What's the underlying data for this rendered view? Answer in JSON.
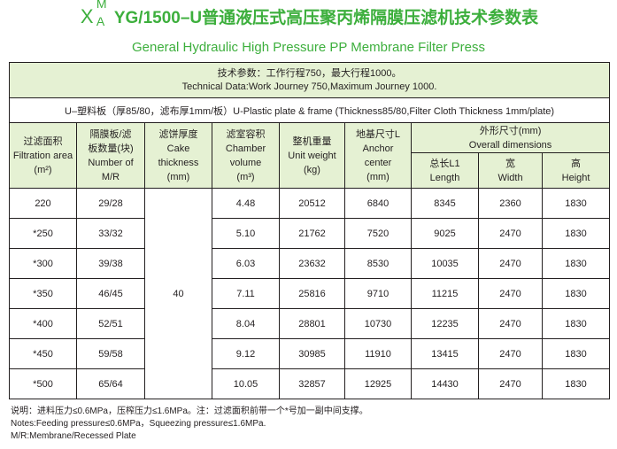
{
  "title": {
    "prefix_x": "X",
    "prefix_m": "M",
    "prefix_a": "A",
    "main": "YG/1500–U普通液压式高压聚丙烯隔膜压滤机技术参数表"
  },
  "subtitle": "General Hydraulic High Pressure PP Membrane Filter Press",
  "technical": {
    "zh": "技术参数：工作行程750，最大行程1000。",
    "en": "Technical Data:Work Journey 750,Maximum Journey 1000."
  },
  "plate_info": "U–塑料板（厚85/80，滤布厚1mm/板）U-Plastic plate & frame (Thickness85/80,Filter Cloth Thickness 1mm/plate)",
  "headers": {
    "filtration_area": {
      "zh": "过滤面积",
      "en": "Filtration area",
      "unit": "(m²)"
    },
    "plates": {
      "zh1": "隔膜板/滤",
      "zh2": "板数量(块)",
      "en1": "Number of",
      "en2": "M/R"
    },
    "cake": {
      "zh": "滤饼厚度",
      "en1": "Cake",
      "en2": "thickness",
      "unit": "(mm)"
    },
    "chamber": {
      "zh": "滤室容积",
      "en1": "Chamber",
      "en2": "volume",
      "unit": "(m³)"
    },
    "weight": {
      "zh": "整机重量",
      "en": "Unit weight",
      "unit": "(kg)"
    },
    "anchor": {
      "zh": "地基尺寸L",
      "en1": "Anchor",
      "en2": "center",
      "unit": "(mm)"
    },
    "overall": {
      "zh": "外形尺寸(mm)",
      "en": "Overall  dimensions"
    },
    "length": {
      "zh": "总长L1",
      "en": "Length"
    },
    "width": {
      "zh": "宽",
      "en": "Width"
    },
    "height": {
      "zh": "高",
      "en": "Height"
    }
  },
  "cake_thickness": "40",
  "rows": [
    {
      "area": "220",
      "plates": "29/28",
      "chamber": "4.48",
      "weight": "20512",
      "anchor": "6840",
      "length": "8345",
      "width": "2360",
      "height": "1830"
    },
    {
      "area": "*250",
      "plates": "33/32",
      "chamber": "5.10",
      "weight": "21762",
      "anchor": "7520",
      "length": "9025",
      "width": "2470",
      "height": "1830"
    },
    {
      "area": "*300",
      "plates": "39/38",
      "chamber": "6.03",
      "weight": "23632",
      "anchor": "8530",
      "length": "10035",
      "width": "2470",
      "height": "1830"
    },
    {
      "area": "*350",
      "plates": "46/45",
      "chamber": "7.11",
      "weight": "25816",
      "anchor": "9710",
      "length": "11215",
      "width": "2470",
      "height": "1830"
    },
    {
      "area": "*400",
      "plates": "52/51",
      "chamber": "8.04",
      "weight": "28801",
      "anchor": "10730",
      "length": "12235",
      "width": "2470",
      "height": "1830"
    },
    {
      "area": "*450",
      "plates": "59/58",
      "chamber": "9.12",
      "weight": "30985",
      "anchor": "11910",
      "length": "13415",
      "width": "2470",
      "height": "1830"
    },
    {
      "area": "*500",
      "plates": "65/64",
      "chamber": "10.05",
      "weight": "32857",
      "anchor": "12925",
      "length": "14430",
      "width": "2470",
      "height": "1830"
    }
  ],
  "notes": {
    "zh": "说明：进料压力≤0.6MPa，压榨压力≤1.6MPa。注：过滤面积前带一个*号加一副中间支撑。",
    "en": "Notes:Feeding pressure≤0.6MPa，Squeezing pressure≤1.6MPa.",
    "mr": "M/R:Membrane/Recessed Plate"
  },
  "colors": {
    "title": "#3daf3d",
    "header_bg": "#e5f1d3",
    "border": "#231f20"
  }
}
